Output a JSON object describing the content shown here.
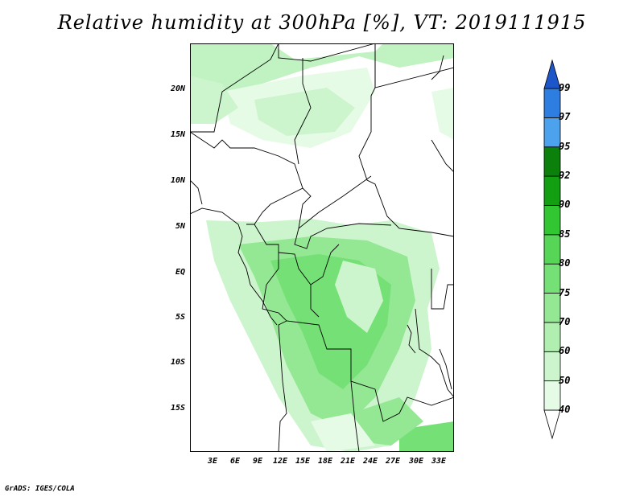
{
  "title": "Relative humidity at 300hPa [%], VT: 2019111915",
  "credit": "GrADS: IGES/COLA",
  "y_ticks": [
    "20N",
    "15N",
    "10N",
    "5N",
    "EQ",
    "5S",
    "10S",
    "15S"
  ],
  "x_ticks": [
    "3E",
    "6E",
    "9E",
    "12E",
    "15E",
    "18E",
    "21E",
    "24E",
    "27E",
    "30E",
    "33E"
  ],
  "colorbar": {
    "levels": [
      "40",
      "50",
      "60",
      "70",
      "75",
      "80",
      "85",
      "90",
      "92",
      "95",
      "97",
      "99"
    ],
    "colors": [
      "#ffffff",
      "#e6fbe6",
      "#cdf5cd",
      "#b1efb1",
      "#94e894",
      "#75e075",
      "#57d557",
      "#33c633",
      "#12a012",
      "#0b800b",
      "#4da2ee",
      "#2d7ee0",
      "#1d56c8"
    ]
  }
}
